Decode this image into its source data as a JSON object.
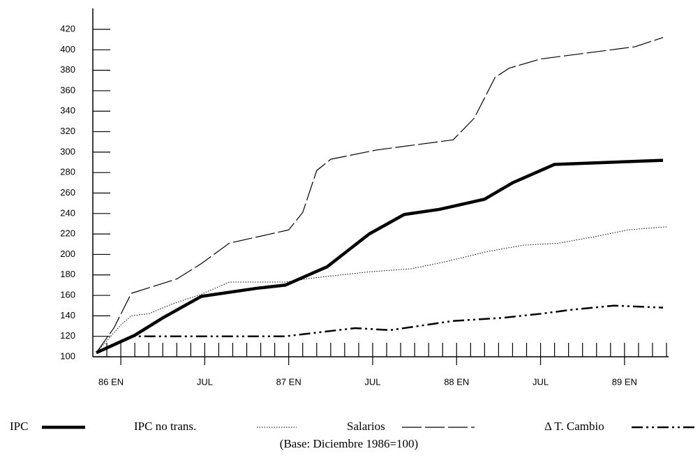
{
  "chart_data": {
    "type": "line",
    "note": "(Base:  Diciembre 1986=100)",
    "xlim": [
      -2,
      39
    ],
    "xticks": [
      {
        "value": 0,
        "label": "86 EN"
      },
      {
        "value": 6,
        "label": "JUL"
      },
      {
        "value": 12,
        "label": "87 EN"
      },
      {
        "value": 18,
        "label": "JUL"
      },
      {
        "value": 24,
        "label": "88 EN"
      },
      {
        "value": 30,
        "label": "JUL"
      },
      {
        "value": 36,
        "label": "89 EN"
      }
    ],
    "ylim": [
      100,
      420
    ],
    "yticks": [
      100,
      120,
      140,
      160,
      180,
      200,
      220,
      240,
      260,
      280,
      300,
      320,
      340,
      360,
      380,
      400,
      420
    ],
    "series": [
      {
        "name": "IPC",
        "color": "#000000",
        "x": [
          -1.75,
          1,
          3,
          5.75,
          9.75,
          11.75,
          14.75,
          17.75,
          20.25,
          22.75,
          26,
          28,
          31,
          38.75
        ],
        "values": [
          104,
          121,
          138,
          159,
          167,
          170,
          188,
          220,
          239,
          244,
          254,
          270,
          288,
          292
        ]
      },
      {
        "name": "IPC  no trans.",
        "color": "#000000",
        "x": [
          -1.75,
          0,
          0.75,
          2,
          3.75,
          5.75,
          7.75,
          11.75,
          13.75,
          17.75,
          20.75,
          23.25,
          26.25,
          28.75,
          31.25,
          33.75,
          36.25,
          39
        ],
        "values": [
          104,
          131,
          140,
          142,
          152,
          161,
          173,
          173,
          177,
          183,
          186,
          193,
          203,
          209,
          211,
          217,
          224,
          227
        ]
      },
      {
        "name": "Salarios",
        "color": "#000000",
        "x": [
          -1.75,
          -0.5,
          0.75,
          4,
          5.75,
          7.75,
          12,
          13,
          14,
          15,
          18.25,
          23.75,
          25.25,
          26.75,
          27.75,
          30,
          36.75,
          38.75
        ],
        "values": [
          104,
          128,
          162,
          176,
          191,
          211,
          224,
          241,
          282,
          293,
          302,
          312,
          333,
          373,
          382,
          391,
          403,
          412
        ]
      },
      {
        "name": "Δ  T. Cambio",
        "color": "#000000",
        "x": [
          -1.75,
          0.75,
          11.75,
          16.75,
          19.25,
          23.75,
          27.25,
          30,
          32.25,
          35.25,
          38.75
        ],
        "values": [
          104,
          120,
          120,
          128,
          126,
          135,
          138,
          142,
          146,
          150,
          148
        ]
      }
    ]
  }
}
